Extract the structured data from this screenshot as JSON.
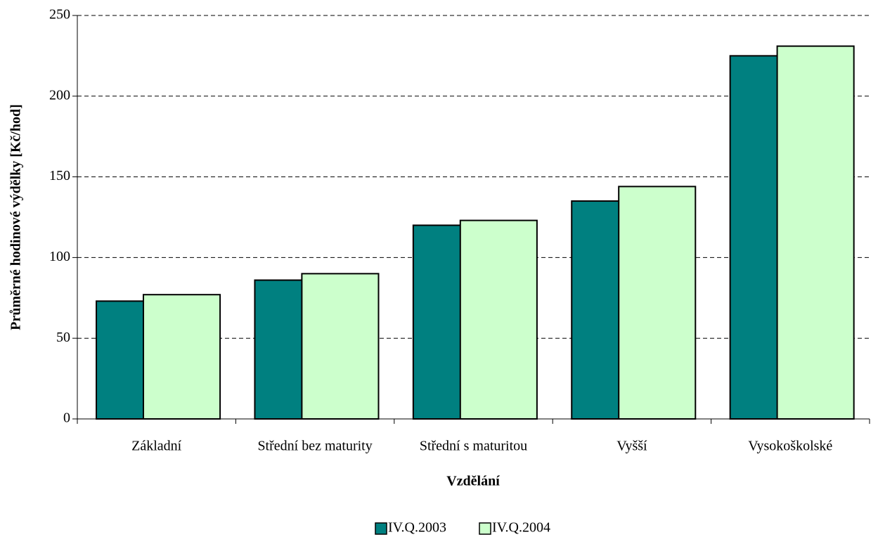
{
  "chart_data": {
    "type": "bar",
    "x_label": "Vzdělání",
    "y_label": "Průměrné hodinové výdělky [Kč/hod]",
    "categories": [
      "Základní",
      "Střední bez maturity",
      "Střední s maturitou",
      "Vyšší",
      "Vysokoškolské"
    ],
    "series": [
      {
        "name": "IV.Q.2003",
        "color": "#008080",
        "values": [
          73,
          86,
          120,
          135,
          225
        ]
      },
      {
        "name": "IV.Q.2004",
        "color": "#ccffcc",
        "values": [
          77,
          90,
          123,
          144,
          231
        ]
      }
    ],
    "ylim": [
      0,
      250
    ],
    "yticks": [
      0,
      50,
      100,
      150,
      200,
      250
    ],
    "grid": true,
    "legend": "bottom"
  }
}
